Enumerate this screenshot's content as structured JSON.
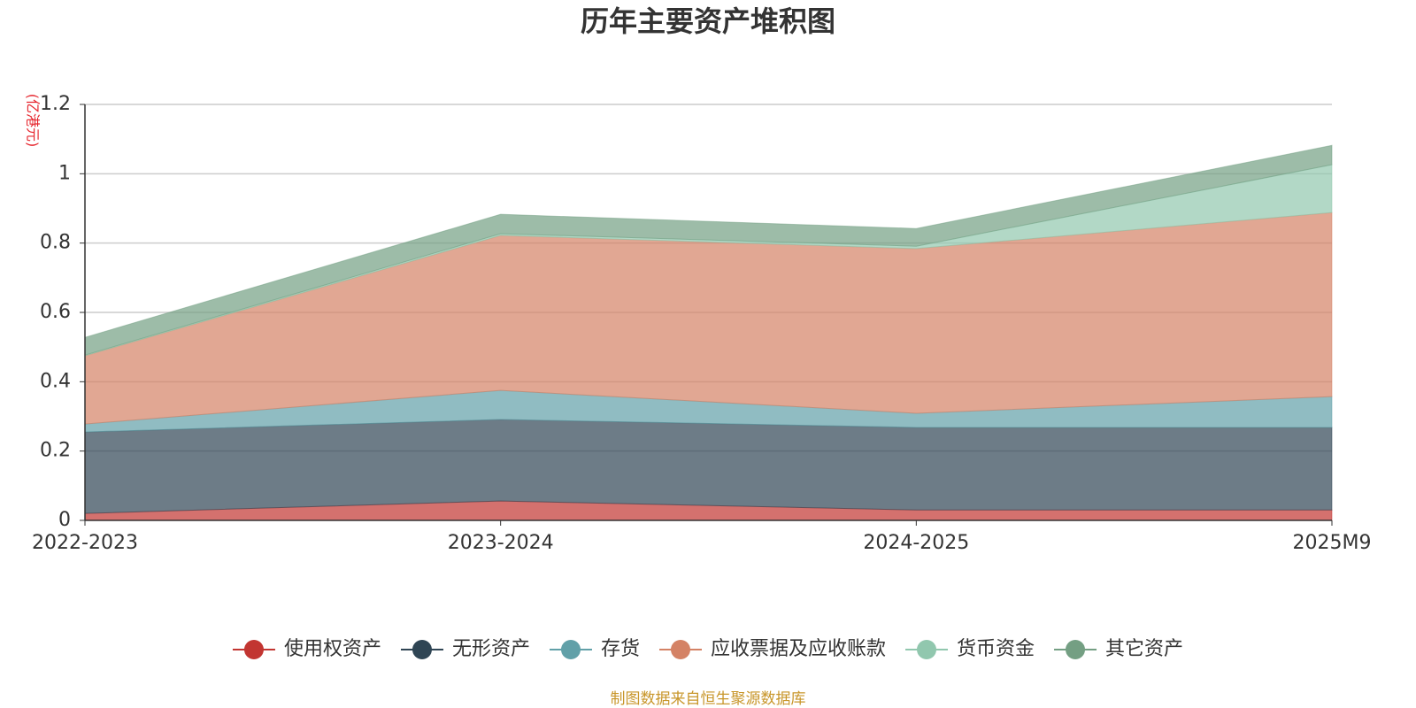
{
  "chart_data": {
    "type": "stacked-area",
    "title": "历年主要资产堆积图",
    "y_axis_label": "(亿港元)",
    "source": "制图数据来自恒生聚源数据库",
    "categories": [
      "2022-2023",
      "2023-2024",
      "2024-2025",
      "2025M9"
    ],
    "series": [
      {
        "name": "使用权资产",
        "color": "#c23531",
        "values": [
          0.02,
          0.056,
          0.03,
          0.03
        ]
      },
      {
        "name": "无形资产",
        "color": "#2f4554",
        "values": [
          0.235,
          0.235,
          0.238,
          0.238
        ]
      },
      {
        "name": "存货",
        "color": "#61a0a8",
        "values": [
          0.023,
          0.084,
          0.041,
          0.089
        ]
      },
      {
        "name": "应收票据及应收账款",
        "color": "#d48265",
        "values": [
          0.197,
          0.447,
          0.475,
          0.531
        ]
      },
      {
        "name": "货币资金",
        "color": "#91c7ae",
        "values": [
          0.002,
          0.005,
          0.007,
          0.138
        ]
      },
      {
        "name": "其它资产",
        "color": "#749f83",
        "values": [
          0.051,
          0.056,
          0.051,
          0.056
        ]
      }
    ],
    "ylim": [
      0,
      1.2
    ],
    "yticks": [
      0,
      0.2,
      0.4,
      0.6,
      0.8,
      1,
      1.2
    ],
    "grid": true
  }
}
